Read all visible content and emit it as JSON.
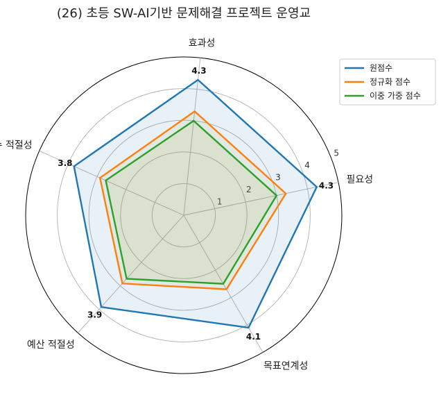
{
  "chart_data": {
    "type": "radar",
    "title": "(26) 초등 SW-AI기반 문제해결 프로젝트 운영교",
    "axes": [
      "필요성",
      "효과성",
      "학교 수 적절성",
      "예산 적절성",
      "목표연계성"
    ],
    "rmax": 5,
    "rticks": [
      1,
      2,
      3,
      4,
      5
    ],
    "grid": true,
    "legend_position": "top-right",
    "series": [
      {
        "name": "원점수",
        "color": "#1f77b4",
        "values": [
          4.3,
          4.3,
          3.8,
          3.9,
          4.1
        ],
        "fill": true
      },
      {
        "name": "정규화 점수",
        "color": "#ff7f0e",
        "values": [
          3.3,
          3.3,
          2.9,
          2.9,
          2.7
        ],
        "fill": false
      },
      {
        "name": "이중 가중 점수",
        "color": "#2ca02c",
        "values": [
          3.0,
          3.0,
          2.7,
          2.7,
          2.5
        ],
        "fill": false
      }
    ],
    "data_labels": [
      "4.3",
      "4.3",
      "3.8",
      "3.9",
      "4.1"
    ]
  }
}
